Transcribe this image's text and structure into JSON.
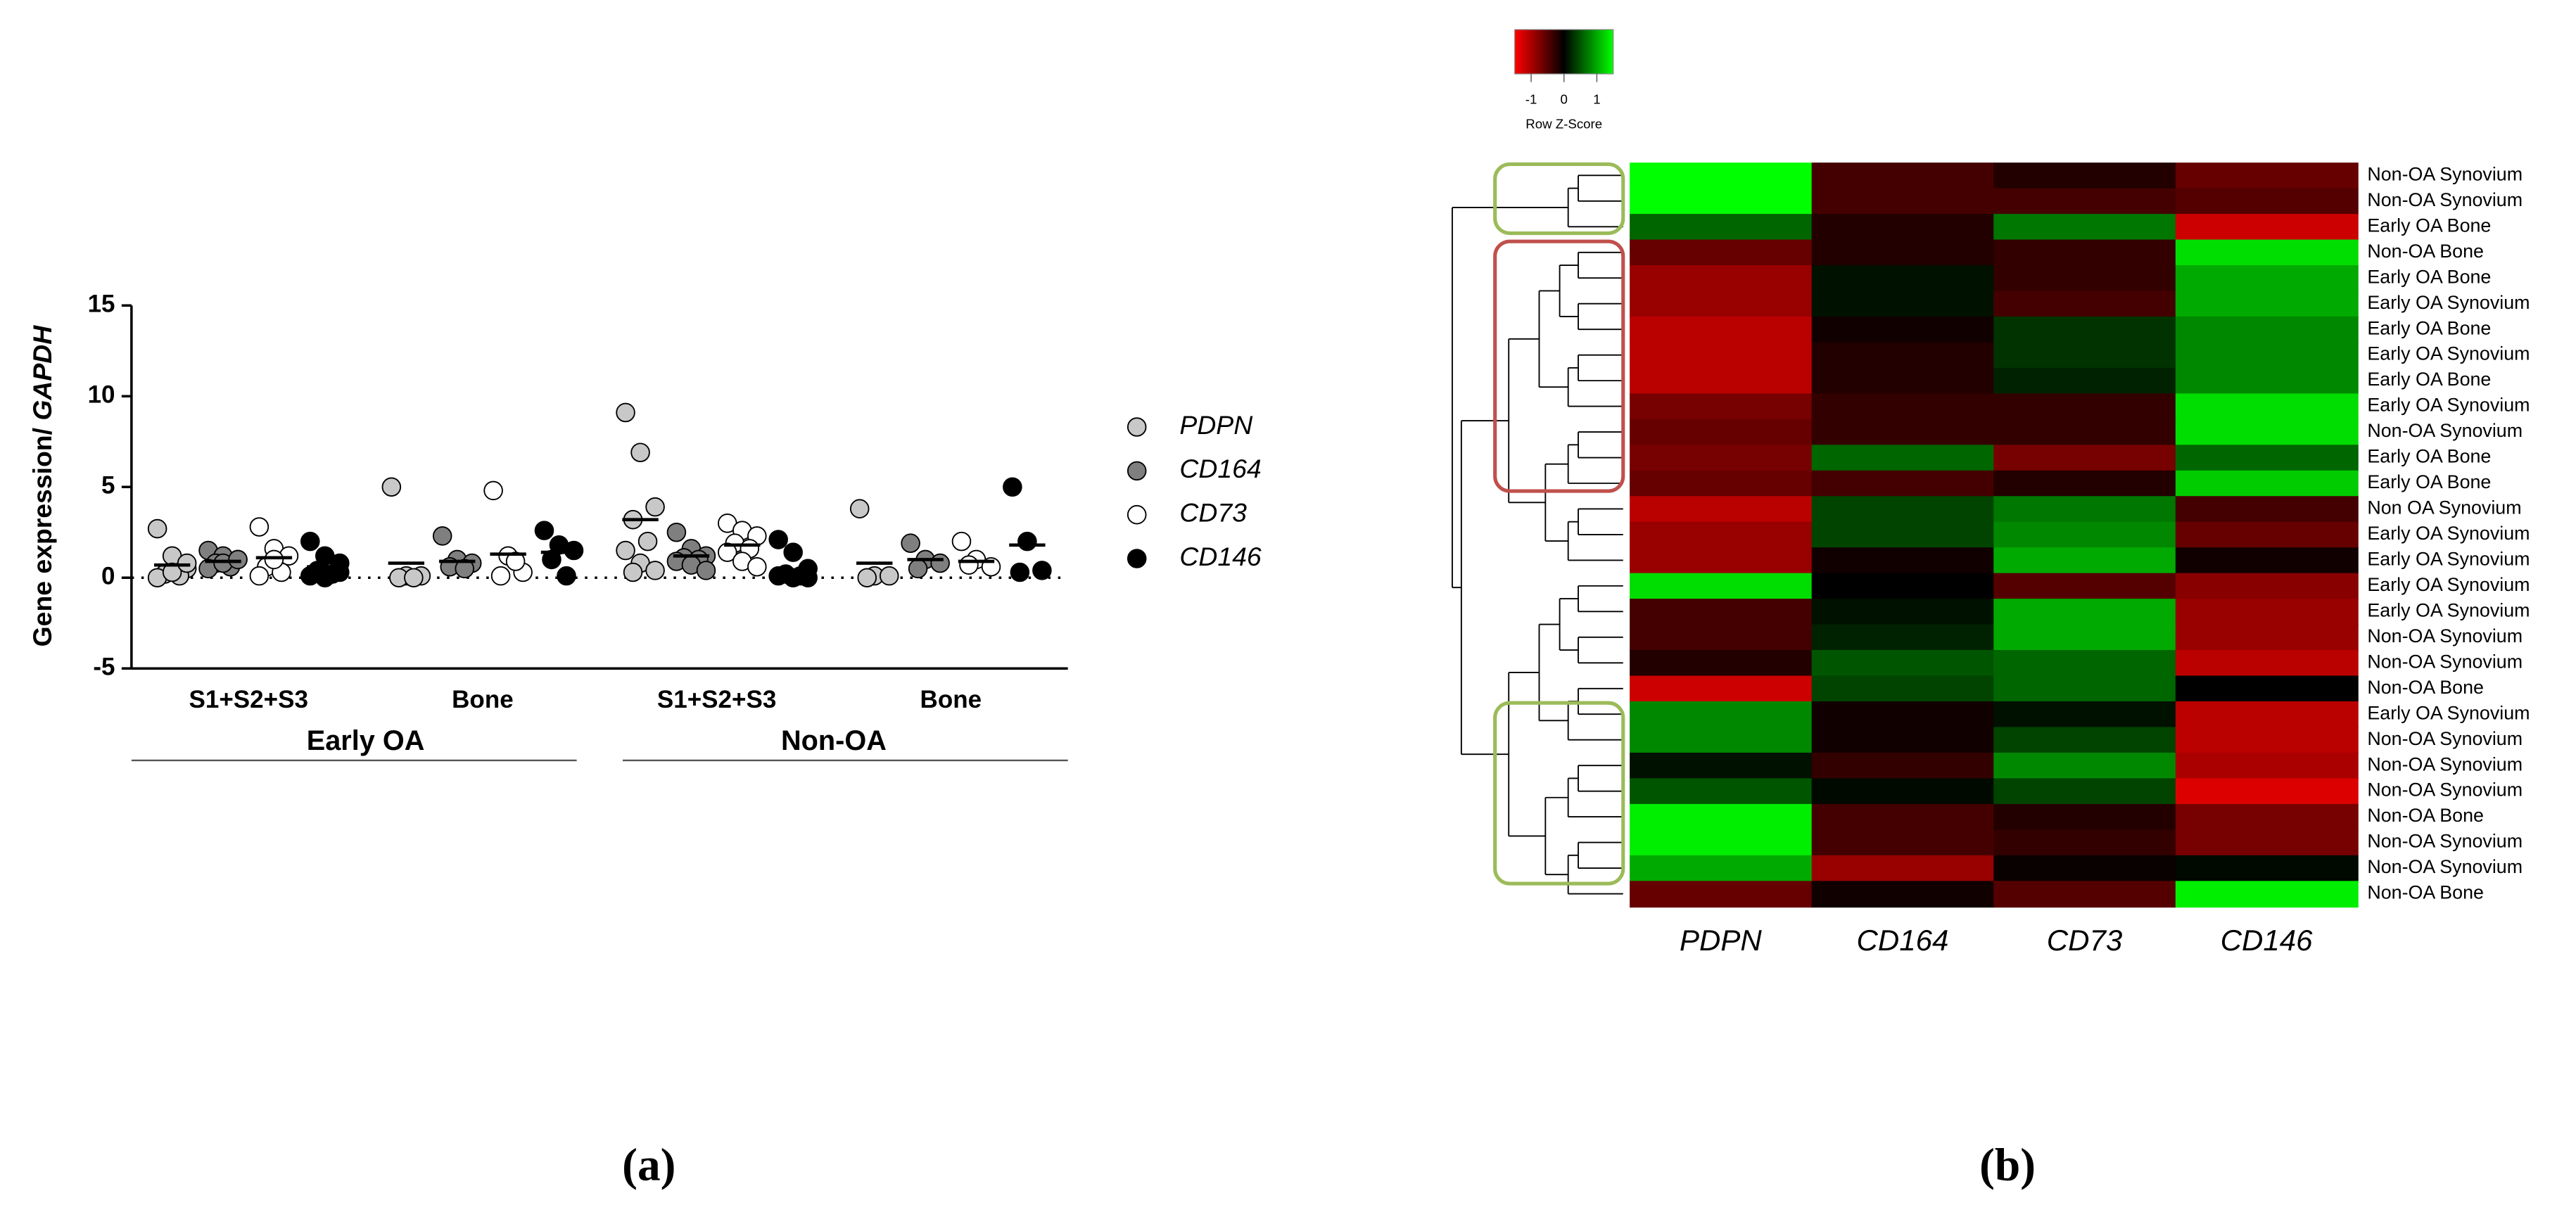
{
  "chart_data": [
    {
      "type": "strip",
      "ylabel": {
        "text": "Gene expression/ ",
        "italic": "GAPDH"
      },
      "categories": [
        "S1+S2+S3",
        "Bone",
        "S1+S2+S3",
        "Bone"
      ],
      "groups": [
        "Early OA",
        "Non-OA"
      ],
      "ylim": [
        -5,
        15
      ],
      "yticks": [
        -5,
        0,
        5,
        10,
        15
      ],
      "reference_line": 0,
      "legend": "right",
      "series": [
        {
          "name": "PDPN",
          "color": "#c8c8c8",
          "points": [
            [
              2.7,
              1.2,
              0.5,
              0.2,
              0.1,
              0,
              0.3,
              0.8
            ],
            [
              5.0,
              0.1,
              0.1,
              0,
              0
            ],
            [
              9.1,
              6.9,
              3.9,
              3.2,
              2.0,
              1.5,
              0.8,
              0.4,
              0.3
            ],
            [
              3.8,
              0.1,
              0.1,
              0
            ]
          ],
          "means": [
            0.7,
            0.8,
            3.2,
            0.8
          ]
        },
        {
          "name": "CD164",
          "color": "#7f7f7f",
          "points": [
            [
              1.5,
              1.2,
              1.0,
              0.8,
              0.6,
              0.5,
              0.8,
              1.0
            ],
            [
              2.3,
              1.0,
              0.8,
              0.6,
              0.5
            ],
            [
              2.5,
              1.6,
              1.2,
              1.1,
              1.0,
              0.9,
              0.7,
              0.4
            ],
            [
              1.9,
              1.0,
              0.8,
              0.5
            ]
          ],
          "means": [
            0.9,
            0.9,
            1.2,
            1.0
          ]
        },
        {
          "name": "CD73",
          "color": "#ffffff",
          "points": [
            [
              2.8,
              1.6,
              1.2,
              0.6,
              0.3,
              0.1,
              1.0
            ],
            [
              4.8,
              1.2,
              0.3,
              0.1,
              0.9
            ],
            [
              3.0,
              2.6,
              2.3,
              1.9,
              1.6,
              1.4,
              0.9,
              0.6
            ],
            [
              2.0,
              1.0,
              0.6,
              0.7
            ]
          ],
          "means": [
            1.1,
            1.3,
            1.8,
            0.9
          ]
        },
        {
          "name": "CD146",
          "color": "#000000",
          "points": [
            [
              2.0,
              1.2,
              0.8,
              0.4,
              0.2,
              0.1,
              0,
              0.3
            ],
            [
              2.6,
              1.8,
              1.5,
              1.0,
              0.1
            ],
            [
              2.1,
              1.4,
              0.5,
              0.2,
              0.1,
              0.1,
              0,
              0
            ],
            [
              5.0,
              2.0,
              0.4,
              0.3
            ]
          ],
          "means": [
            0.6,
            1.4,
            0.3,
            1.8
          ]
        }
      ]
    },
    {
      "type": "heatmap",
      "columns": [
        "PDPN",
        "CD164",
        "CD73",
        "CD146"
      ],
      "rows": [
        "Non-OA Synovium",
        "Non-OA Synovium",
        "Early OA Bone",
        "Non-OA Bone",
        "Early OA Bone",
        "Early OA Synovium",
        "Early OA Bone",
        "Early OA Synovium",
        "Early OA Bone",
        "Early OA Synovium",
        "Non-OA Synovium",
        "Early OA Bone",
        "Early OA Bone",
        "Non OA Synovium",
        "Early OA Synovium",
        "Early OA Synovium",
        "Early OA Synovium",
        "Early OA Synovium",
        "Non-OA Synovium",
        "Non-OA Synovium",
        "Non-OA Bone",
        "Early OA Synovium",
        "Non-OA Synovium",
        "Non-OA Synovium",
        "Non-OA Synovium",
        "Non-OA Bone",
        "Non-OA Synovium",
        "Non-OA Synovium",
        "Non-OA Bone"
      ],
      "values": [
        [
          1.5,
          -0.4,
          -0.2,
          -0.6
        ],
        [
          1.5,
          -0.4,
          -0.4,
          -0.5
        ],
        [
          0.6,
          -0.2,
          0.7,
          -1.2
        ],
        [
          -0.6,
          -0.2,
          -0.3,
          1.3
        ],
        [
          -0.9,
          0.1,
          -0.3,
          1.0
        ],
        [
          -0.9,
          0.1,
          -0.4,
          1.0
        ],
        [
          -1.1,
          -0.1,
          0.3,
          0.8
        ],
        [
          -1.1,
          -0.2,
          0.3,
          0.8
        ],
        [
          -1.1,
          -0.2,
          0.2,
          0.8
        ],
        [
          -0.7,
          -0.3,
          -0.3,
          1.3
        ],
        [
          -0.6,
          -0.3,
          -0.3,
          1.3
        ],
        [
          -0.7,
          0.6,
          -0.7,
          0.6
        ],
        [
          -0.6,
          -0.4,
          -0.2,
          1.2
        ],
        [
          -1.1,
          0.4,
          0.7,
          -0.4
        ],
        [
          -0.9,
          0.4,
          0.8,
          -0.6
        ],
        [
          -0.9,
          -0.1,
          1.0,
          -0.1
        ],
        [
          1.3,
          0,
          -0.5,
          -0.8
        ],
        [
          -0.4,
          0.1,
          1.0,
          -0.9
        ],
        [
          -0.4,
          0.2,
          1.0,
          -0.9
        ],
        [
          -0.2,
          0.5,
          0.6,
          -1.1
        ],
        [
          -1.2,
          0.4,
          0.6,
          0
        ],
        [
          0.8,
          -0.1,
          0.1,
          -1.1
        ],
        [
          0.8,
          -0.1,
          0.4,
          -1.1
        ],
        [
          0.1,
          -0.3,
          0.8,
          -1.0
        ],
        [
          0.5,
          0.05,
          0.4,
          -1.3
        ],
        [
          1.4,
          -0.4,
          -0.2,
          -0.7
        ],
        [
          1.4,
          -0.4,
          -0.3,
          -0.7
        ],
        [
          1.0,
          -0.9,
          -0.05,
          0.05
        ],
        [
          -0.6,
          -0.1,
          -0.5,
          1.4
        ]
      ],
      "colorbar": {
        "label": "Row Z-Score",
        "lim": [
          -1.5,
          1.5
        ],
        "ticks": [
          -1,
          0,
          1
        ],
        "colors": [
          "#ff0000",
          "#000000",
          "#00ff00"
        ]
      }
    }
  ],
  "panel_labels": [
    "(a)",
    "(b)"
  ]
}
